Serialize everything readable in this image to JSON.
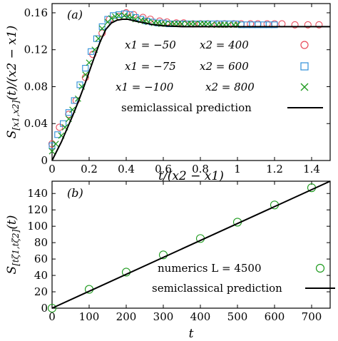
{
  "chart_data": [
    {
      "type": "scatter",
      "panel_label": "(a)",
      "xlabel": "t/(x2 − x1)",
      "ylabel": "S[x1,x2](t)/(x2 − x1)",
      "xlim": [
        0,
        1.5
      ],
      "ylim": [
        0,
        0.17
      ],
      "x_ticks": [
        0,
        0.2,
        0.4,
        0.6,
        0.8,
        1,
        1.2,
        1.4
      ],
      "x_tick_labels": [
        "0",
        "0.2",
        "0.4",
        "0.6",
        "0.8",
        "1",
        "1.2",
        "1.4"
      ],
      "y_ticks": [
        0,
        0.04,
        0.08,
        0.12,
        0.16
      ],
      "y_tick_labels": [
        "0",
        "0.04",
        "0.08",
        "0.12",
        "0.16"
      ],
      "legend_placement": "right",
      "series": [
        {
          "name": "x1 = −50   x2 = 400",
          "marker": "circle",
          "color": "#e8495a",
          "x": [
            0,
            0.04,
            0.09,
            0.13,
            0.18,
            0.22,
            0.27,
            0.31,
            0.36,
            0.4,
            0.44,
            0.49,
            0.53,
            0.58,
            0.62,
            0.67,
            0.71,
            0.76,
            0.8,
            0.84,
            0.89,
            0.93,
            0.98,
            1.02,
            1.07,
            1.11,
            1.16,
            1.2,
            1.24,
            1.31,
            1.38,
            1.44
          ],
          "y": [
            0.018,
            0.036,
            0.05,
            0.065,
            0.09,
            0.115,
            0.138,
            0.153,
            0.156,
            0.16,
            0.158,
            0.155,
            0.153,
            0.151,
            0.15,
            0.149,
            0.149,
            0.148,
            0.148,
            0.148,
            0.148,
            0.148,
            0.148,
            0.148,
            0.148,
            0.148,
            0.148,
            0.148,
            0.148,
            0.147,
            0.147,
            0.147
          ]
        },
        {
          "name": "x1 = −75   x2 = 600",
          "marker": "square",
          "color": "#2f8fd8",
          "x": [
            0,
            0.03,
            0.06,
            0.09,
            0.12,
            0.15,
            0.18,
            0.21,
            0.24,
            0.27,
            0.3,
            0.33,
            0.36,
            0.39,
            0.42,
            0.45,
            0.48,
            0.51,
            0.54,
            0.57,
            0.6,
            0.63,
            0.66,
            0.69,
            0.72,
            0.75,
            0.78,
            0.81,
            0.84,
            0.87,
            0.9,
            0.93,
            0.96,
            0.99,
            1.02,
            1.05,
            1.08,
            1.11,
            1.14,
            1.17,
            1.2
          ],
          "y": [
            0.016,
            0.028,
            0.04,
            0.052,
            0.065,
            0.082,
            0.1,
            0.118,
            0.132,
            0.145,
            0.153,
            0.157,
            0.158,
            0.159,
            0.158,
            0.155,
            0.153,
            0.151,
            0.15,
            0.149,
            0.149,
            0.148,
            0.148,
            0.148,
            0.148,
            0.148,
            0.148,
            0.148,
            0.148,
            0.148,
            0.148,
            0.148,
            0.148,
            0.148,
            0.147,
            0.147,
            0.147,
            0.147,
            0.147,
            0.147,
            0.147
          ]
        },
        {
          "name": "x1 = −100   x2 = 800",
          "marker": "cross",
          "color": "#1d9a1d",
          "x": [
            0,
            0.02,
            0.05,
            0.07,
            0.09,
            0.11,
            0.14,
            0.16,
            0.18,
            0.2,
            0.23,
            0.25,
            0.27,
            0.3,
            0.32,
            0.34,
            0.36,
            0.39,
            0.41,
            0.43,
            0.45,
            0.48,
            0.5,
            0.52,
            0.55,
            0.57,
            0.59,
            0.61,
            0.64,
            0.66,
            0.68,
            0.7,
            0.73,
            0.75,
            0.77,
            0.8,
            0.82,
            0.84,
            0.86,
            0.89,
            0.91,
            0.93,
            0.95,
            0.98,
            1.0
          ],
          "y": [
            0.01,
            0.018,
            0.027,
            0.036,
            0.045,
            0.055,
            0.067,
            0.08,
            0.093,
            0.106,
            0.12,
            0.132,
            0.143,
            0.15,
            0.154,
            0.156,
            0.157,
            0.157,
            0.156,
            0.155,
            0.153,
            0.152,
            0.151,
            0.15,
            0.149,
            0.149,
            0.148,
            0.148,
            0.148,
            0.148,
            0.148,
            0.148,
            0.148,
            0.148,
            0.148,
            0.148,
            0.148,
            0.148,
            0.147,
            0.147,
            0.147,
            0.147,
            0.147,
            0.147,
            0.147
          ]
        },
        {
          "name": "semiclassical prediction",
          "marker": "line",
          "color": "#000000",
          "x": [
            0,
            0.02,
            0.05,
            0.08,
            0.11,
            0.14,
            0.17,
            0.2,
            0.23,
            0.26,
            0.29,
            0.32,
            0.35,
            0.38,
            0.41,
            0.45,
            0.5,
            0.55,
            0.6,
            0.7,
            0.8,
            0.9,
            1.0,
            1.2,
            1.4,
            1.5
          ],
          "y": [
            0,
            0.008,
            0.02,
            0.034,
            0.048,
            0.063,
            0.079,
            0.096,
            0.113,
            0.129,
            0.142,
            0.149,
            0.152,
            0.153,
            0.153,
            0.151,
            0.149,
            0.147,
            0.146,
            0.145,
            0.145,
            0.145,
            0.145,
            0.145,
            0.145,
            0.145
          ]
        }
      ]
    },
    {
      "type": "scatter",
      "panel_label": "(b)",
      "xlabel": "t",
      "ylabel": "S[tζ1,tζ2](t)",
      "xlim": [
        0,
        750
      ],
      "ylim": [
        0,
        155
      ],
      "x_ticks": [
        0,
        100,
        200,
        300,
        400,
        500,
        600,
        700
      ],
      "x_tick_labels": [
        "0",
        "100",
        "200",
        "300",
        "400",
        "500",
        "600",
        "700"
      ],
      "y_ticks": [
        0,
        20,
        40,
        60,
        80,
        100,
        120,
        140
      ],
      "y_tick_labels": [
        "0",
        "20",
        "40",
        "60",
        "80",
        "100",
        "120",
        "140"
      ],
      "legend_placement": "bottom-right",
      "series": [
        {
          "name": "numerics L = 4500",
          "marker": "circle",
          "color": "#1d9a1d",
          "x": [
            0,
            100,
            200,
            300,
            400,
            500,
            600,
            700
          ],
          "y": [
            0,
            23,
            44,
            65,
            85,
            105,
            126,
            147
          ]
        },
        {
          "name": "semiclassical prediction",
          "marker": "line",
          "color": "#000000",
          "x": [
            0,
            750
          ],
          "y": [
            0,
            155
          ]
        }
      ]
    }
  ],
  "panels": {
    "a": {
      "label": "(a)",
      "ylabel_main": "S",
      "ylabel_sub": "[x1,x2]",
      "ylabel_rest": "(t)/(x2 − x1)",
      "xlabel": "t/(x2 − x1)",
      "legend": [
        {
          "x1": "x1 = −50",
          "x2": "x2 = 400"
        },
        {
          "x1": "x1 = −75",
          "x2": "x2 = 600"
        },
        {
          "x1": "x1 = −100",
          "x2": "x2 = 800"
        },
        {
          "text": "semiclassical prediction"
        }
      ]
    },
    "b": {
      "label": "(b)",
      "ylabel_main": "S",
      "ylabel_sub": "[tζ1,tζ2]",
      "ylabel_rest": "(t)",
      "xlabel": "t",
      "legend": [
        {
          "text": "numerics L = 4500"
        },
        {
          "text": "semiclassical prediction"
        }
      ]
    }
  }
}
